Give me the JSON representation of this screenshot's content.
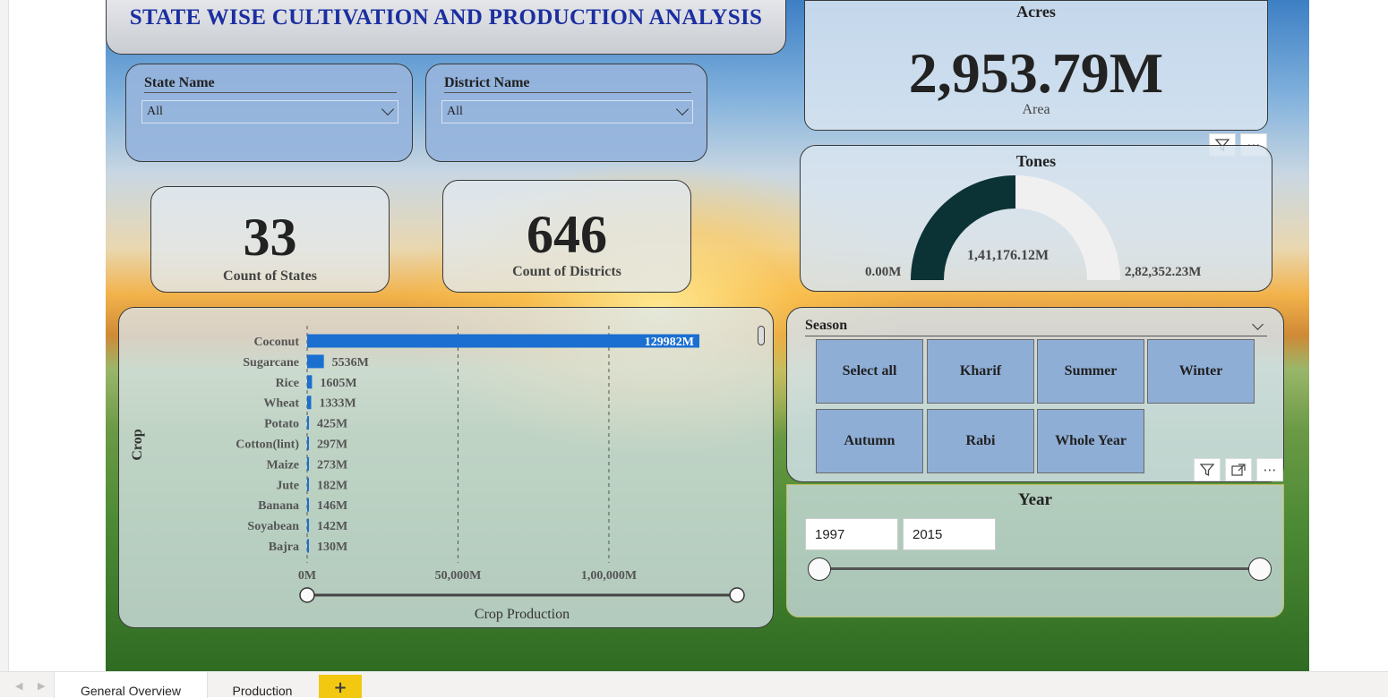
{
  "title": "STATE WISE CULTIVATION AND PRODUCTION ANALYSIS",
  "state_slicer": {
    "label": "State Name",
    "value": "All"
  },
  "district_slicer": {
    "label": "District Name",
    "value": "All"
  },
  "count_states": {
    "value": "33",
    "caption": "Count of States"
  },
  "count_districts": {
    "value": "646",
    "caption": "Count of Districts"
  },
  "acres": {
    "title": "Acres",
    "value": "2,953.79M",
    "caption": "Area"
  },
  "tones": {
    "title": "Tones",
    "min_label": "0.00M",
    "value_label": "1,41,176.12M",
    "max_label": "2,82,352.23M",
    "fraction": 0.5,
    "fill_color": "#0b3335",
    "rest_color": "#f0f0f0"
  },
  "season": {
    "label": "Season",
    "options": [
      "Select all",
      "Kharif",
      "Summer",
      "Winter",
      "Autumn",
      "Rabi",
      "Whole Year"
    ]
  },
  "year": {
    "title": "Year",
    "start": "1997",
    "end": "2015"
  },
  "chart_data": {
    "type": "bar",
    "orientation": "horizontal",
    "categories": [
      "Coconut",
      "Sugarcane",
      "Rice",
      "Wheat",
      "Potato",
      "Cotton(lint)",
      "Maize",
      "Jute",
      "Banana",
      "Soyabean",
      "Bajra"
    ],
    "values": [
      129982,
      5536,
      1605,
      1333,
      425,
      297,
      273,
      182,
      146,
      142,
      130
    ],
    "data_labels": [
      "129982M",
      "5536M",
      "1605M",
      "1333M",
      "425M",
      "297M",
      "273M",
      "182M",
      "146M",
      "142M",
      "130M"
    ],
    "xlabel": "Crop Production",
    "ylabel": "Crop",
    "xlim": [
      0,
      129982
    ],
    "x_ticks": [
      0,
      50000,
      100000
    ],
    "x_tick_labels": [
      "0M",
      "50,000M",
      "1,00,000M"
    ],
    "bar_color": "#1a6fd1",
    "grid": "vertical dashed"
  },
  "tabs": [
    {
      "label": "General Overview",
      "active": true
    },
    {
      "label": "Production",
      "active": false
    }
  ],
  "icons": {
    "filter": "filter-icon",
    "more": "more-options-icon",
    "focus": "focus-mode-icon",
    "add": "add-page-icon"
  }
}
